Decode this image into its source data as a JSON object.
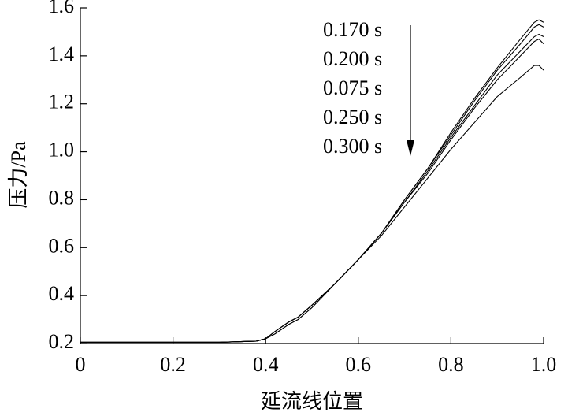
{
  "chart_data": {
    "type": "line",
    "xlabel": "延流线位置",
    "ylabel": "压力/Pa",
    "x": [
      0,
      0.1,
      0.2,
      0.3,
      0.38,
      0.4,
      0.42,
      0.45,
      0.47,
      0.5,
      0.55,
      0.6,
      0.65,
      0.7,
      0.75,
      0.8,
      0.85,
      0.9,
      0.95,
      0.98,
      0.99,
      1.0
    ],
    "series": [
      {
        "name": "0.170 s",
        "color": "#000000",
        "values": [
          0.205,
          0.205,
          0.205,
          0.205,
          0.21,
          0.22,
          0.25,
          0.29,
          0.31,
          0.36,
          0.45,
          0.55,
          0.66,
          0.8,
          0.93,
          1.08,
          1.22,
          1.35,
          1.47,
          1.54,
          1.55,
          1.54
        ]
      },
      {
        "name": "0.200 s",
        "color": "#000000",
        "values": [
          0.205,
          0.205,
          0.205,
          0.205,
          0.21,
          0.22,
          0.25,
          0.29,
          0.31,
          0.36,
          0.45,
          0.55,
          0.66,
          0.8,
          0.93,
          1.07,
          1.21,
          1.34,
          1.45,
          1.52,
          1.53,
          1.52
        ]
      },
      {
        "name": "0.075 s",
        "color": "#000000",
        "values": [
          0.205,
          0.205,
          0.205,
          0.205,
          0.21,
          0.22,
          0.24,
          0.28,
          0.3,
          0.35,
          0.45,
          0.55,
          0.66,
          0.79,
          0.92,
          1.06,
          1.19,
          1.32,
          1.42,
          1.48,
          1.49,
          1.48
        ]
      },
      {
        "name": "0.250 s",
        "color": "#000000",
        "values": [
          0.205,
          0.205,
          0.205,
          0.205,
          0.21,
          0.22,
          0.24,
          0.28,
          0.3,
          0.35,
          0.45,
          0.55,
          0.66,
          0.79,
          0.91,
          1.05,
          1.18,
          1.3,
          1.4,
          1.46,
          1.47,
          1.45
        ]
      },
      {
        "name": "0.300 s",
        "color": "#000000",
        "values": [
          0.205,
          0.205,
          0.205,
          0.205,
          0.21,
          0.22,
          0.25,
          0.29,
          0.31,
          0.36,
          0.45,
          0.55,
          0.65,
          0.77,
          0.89,
          1.01,
          1.12,
          1.23,
          1.31,
          1.36,
          1.36,
          1.34
        ]
      }
    ],
    "xlim": [
      0,
      1.0
    ],
    "xticks": [
      0,
      0.2,
      0.4,
      0.6,
      0.8,
      {
        "value": 1,
        "label": "1.0"
      }
    ],
    "ylim": [
      0.2,
      1.6
    ],
    "yticks": [
      0.2,
      0.4,
      0.6,
      0.8,
      {
        "value": 1,
        "label": "1.0"
      },
      1.2,
      1.4,
      1.6
    ]
  }
}
